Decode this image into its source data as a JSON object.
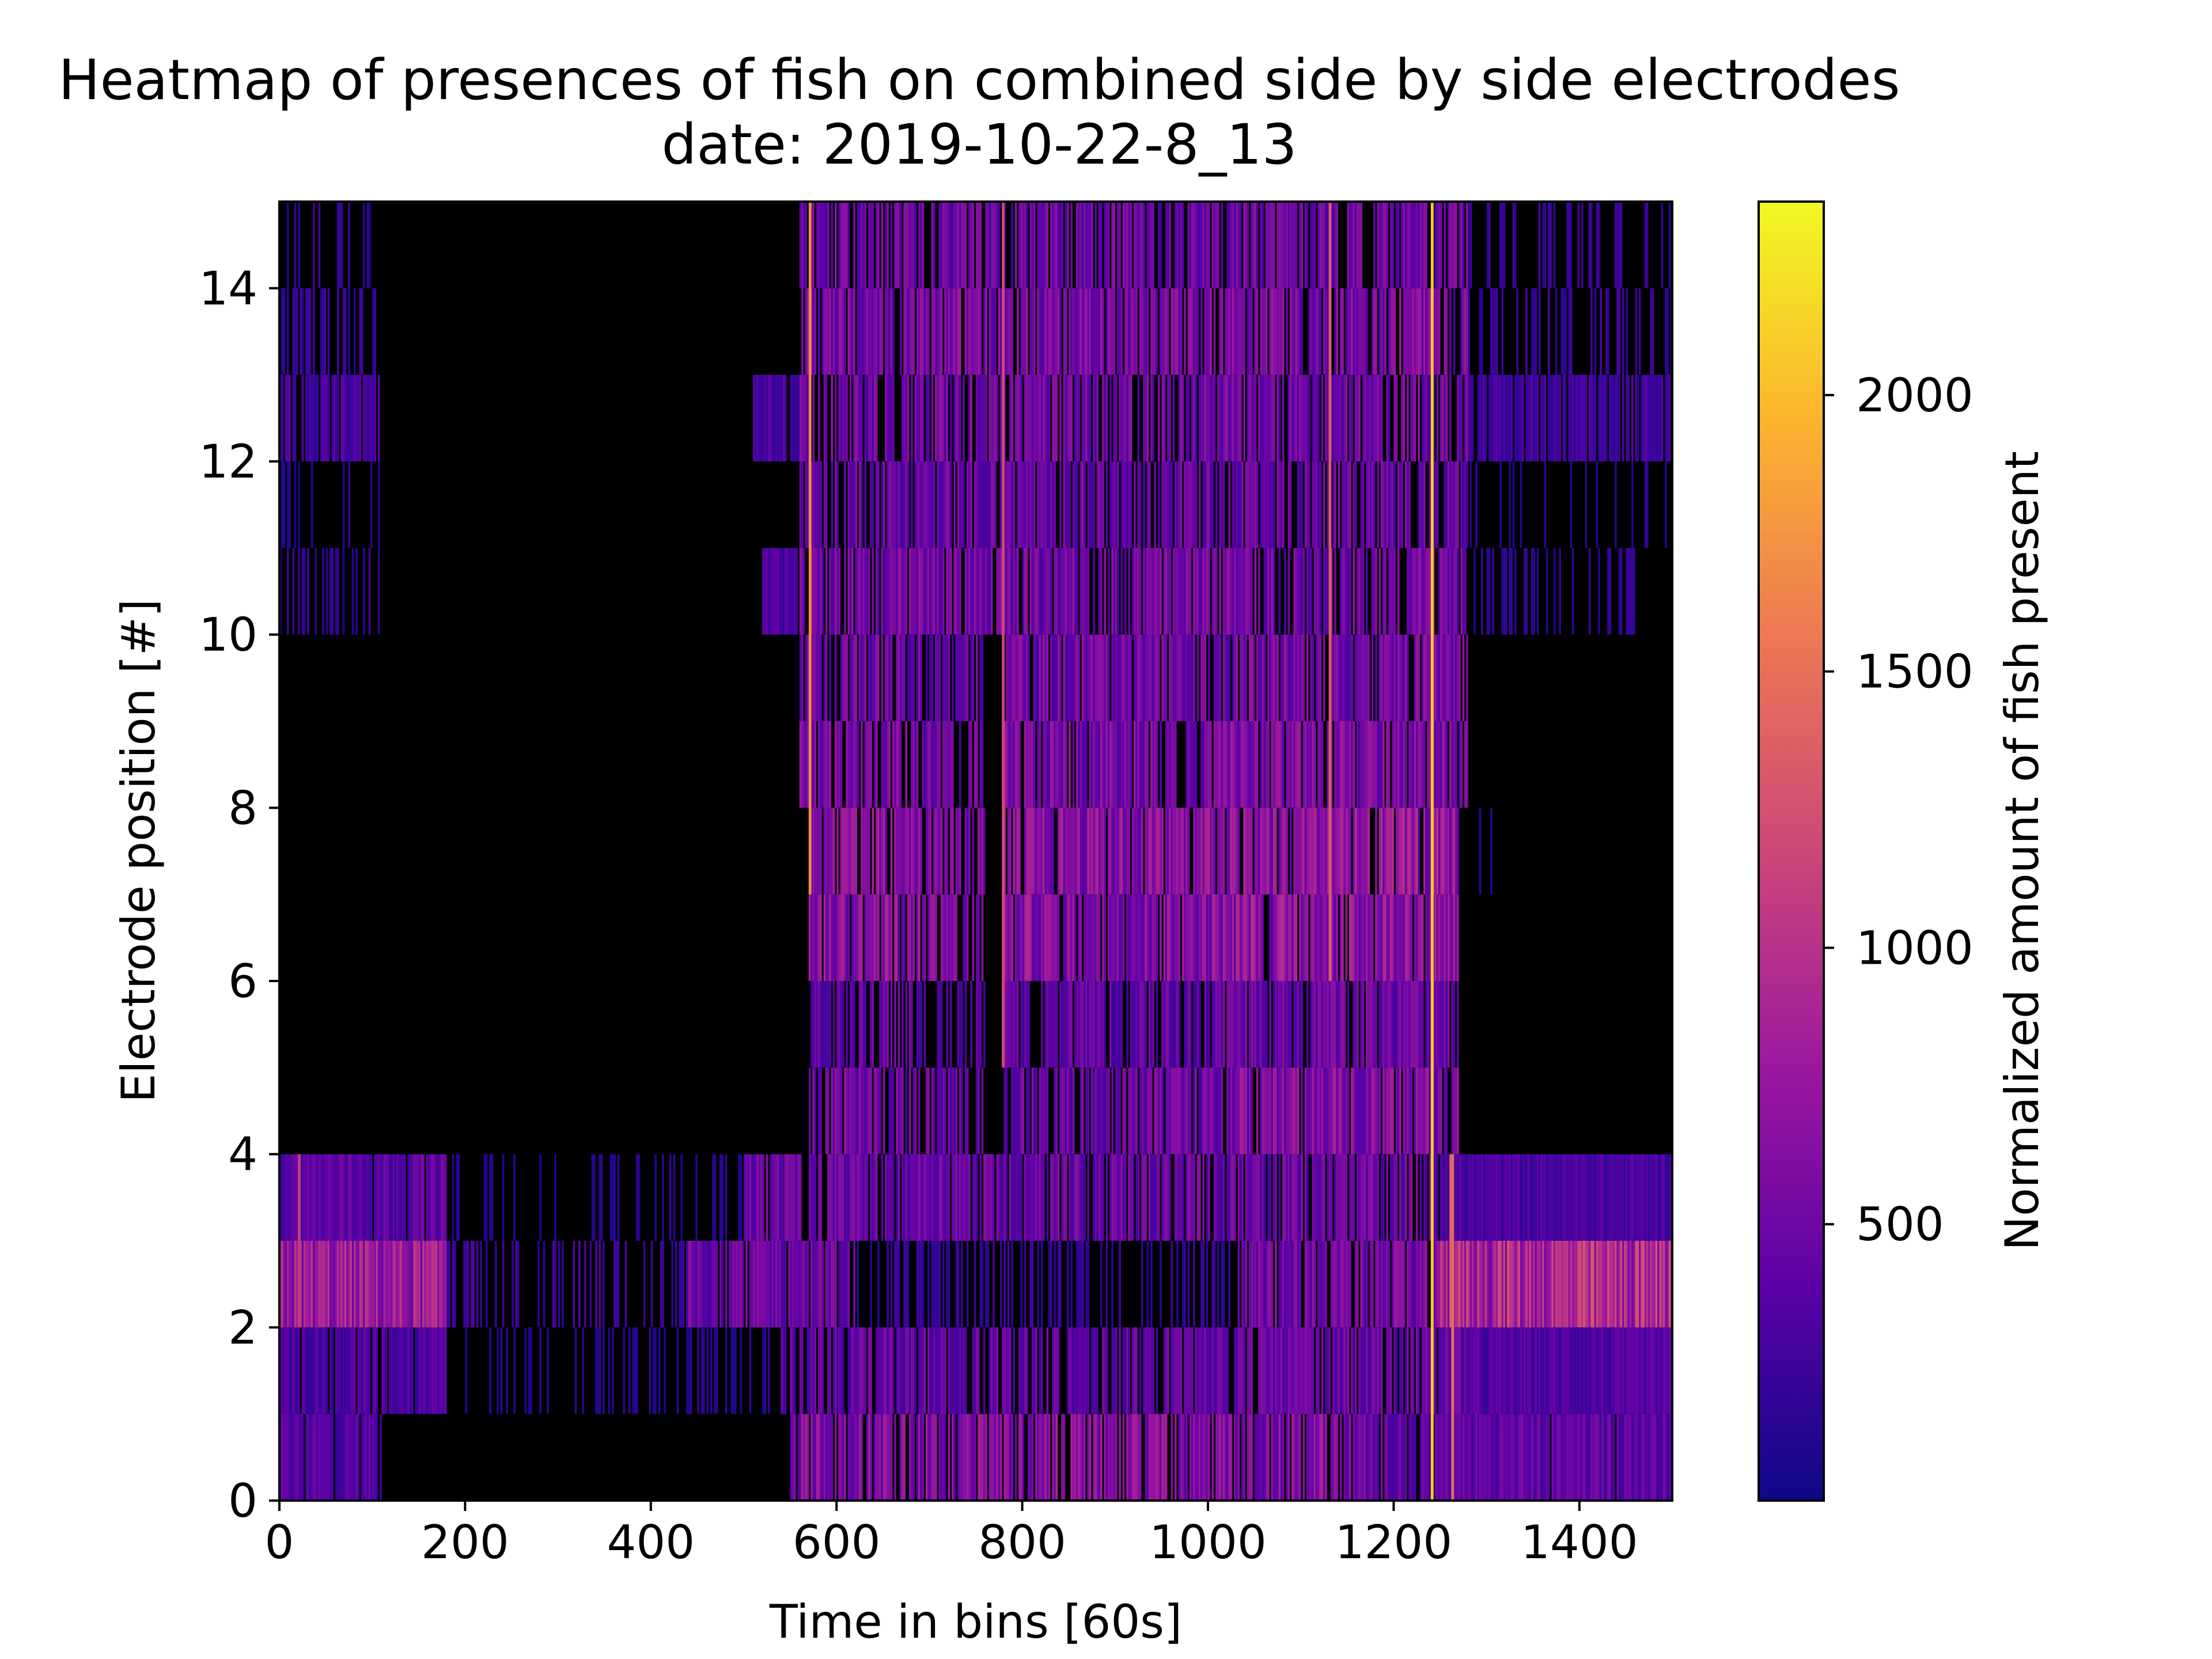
{
  "chart_data": {
    "type": "heatmap",
    "title": "Heatmap of presences of fish on combined side by side electrodes",
    "subtitle": "date: 2019-10-22-8_13",
    "xlabel": "Time in bins [60s]",
    "ylabel": "Electrode position [#]",
    "colorbar_label": "Normalized amount of fish present",
    "colormap": "plasma",
    "colormap_stops": [
      "#0d0887",
      "#5c01a6",
      "#9c179e",
      "#cc4778",
      "#ed7953",
      "#fdb42f",
      "#f0f921"
    ],
    "zero_color": "#000000",
    "xlim": [
      0,
      1500
    ],
    "ylim": [
      0,
      15
    ],
    "xticks": [
      0,
      200,
      400,
      600,
      800,
      1000,
      1200,
      1400
    ],
    "yticks": [
      0,
      2,
      4,
      6,
      8,
      10,
      12,
      14
    ],
    "colorbar_range": [
      0,
      2350
    ],
    "colorbar_ticks": [
      500,
      1000,
      1500,
      2000
    ],
    "grid": false,
    "rows": 15,
    "columns": 1500,
    "segments_note": "Approximate per-electrode activity; each entry is [start_bin, end_bin, mean value, fraction of bins active]",
    "row_segments": [
      [
        [
          0,
          110,
          350,
          0.9
        ],
        [
          110,
          550,
          0,
          0
        ],
        [
          550,
          1170,
          620,
          0.8
        ],
        [
          1170,
          1500,
          420,
          0.95
        ]
      ],
      [
        [
          0,
          180,
          320,
          0.9
        ],
        [
          180,
          540,
          120,
          0.3
        ],
        [
          540,
          1060,
          430,
          0.75
        ],
        [
          1060,
          1280,
          450,
          0.85
        ],
        [
          1280,
          1500,
          330,
          1.0
        ]
      ],
      [
        [
          0,
          180,
          760,
          0.98
        ],
        [
          180,
          440,
          240,
          0.35
        ],
        [
          440,
          620,
          480,
          0.85
        ],
        [
          620,
          1030,
          200,
          0.35
        ],
        [
          1030,
          1250,
          520,
          0.85
        ],
        [
          1250,
          1500,
          900,
          1.0
        ]
      ],
      [
        [
          0,
          180,
          400,
          0.95
        ],
        [
          180,
          500,
          120,
          0.2
        ],
        [
          500,
          1250,
          470,
          0.8
        ],
        [
          1250,
          1500,
          300,
          1.0
        ]
      ],
      [
        [
          570,
          700,
          520,
          0.75
        ],
        [
          700,
          760,
          420,
          0.6
        ],
        [
          780,
          1030,
          480,
          0.8
        ],
        [
          1030,
          1270,
          600,
          0.85
        ]
      ],
      [
        [
          570,
          700,
          430,
          0.7
        ],
        [
          700,
          760,
          360,
          0.6
        ],
        [
          780,
          1030,
          420,
          0.8
        ],
        [
          1030,
          1270,
          470,
          0.85
        ]
      ],
      [
        [
          570,
          700,
          640,
          0.8
        ],
        [
          700,
          760,
          580,
          0.7
        ],
        [
          780,
          1030,
          640,
          0.85
        ],
        [
          1030,
          1270,
          690,
          0.9
        ]
      ],
      [
        [
          570,
          700,
          650,
          0.8
        ],
        [
          700,
          760,
          560,
          0.7
        ],
        [
          780,
          1030,
          650,
          0.85
        ],
        [
          1030,
          1270,
          700,
          0.9
        ],
        [
          1280,
          1330,
          120,
          0.2
        ]
      ],
      [
        [
          560,
          700,
          520,
          0.75
        ],
        [
          700,
          760,
          480,
          0.6
        ],
        [
          780,
          1030,
          560,
          0.85
        ],
        [
          1030,
          1280,
          560,
          0.85
        ]
      ],
      [
        [
          560,
          700,
          480,
          0.75
        ],
        [
          700,
          760,
          430,
          0.6
        ],
        [
          780,
          1030,
          520,
          0.85
        ],
        [
          1030,
          1280,
          520,
          0.85
        ]
      ],
      [
        [
          0,
          110,
          180,
          0.3
        ],
        [
          520,
          560,
          300,
          0.9
        ],
        [
          560,
          1280,
          520,
          0.8
        ],
        [
          1280,
          1500,
          160,
          0.25
        ]
      ],
      [
        [
          0,
          110,
          120,
          0.2
        ],
        [
          560,
          1280,
          460,
          0.75
        ],
        [
          1280,
          1500,
          120,
          0.2
        ]
      ],
      [
        [
          0,
          110,
          300,
          0.7
        ],
        [
          510,
          560,
          300,
          0.9
        ],
        [
          560,
          1280,
          500,
          0.75
        ],
        [
          1280,
          1500,
          260,
          0.8
        ]
      ],
      [
        [
          0,
          110,
          200,
          0.4
        ],
        [
          560,
          1280,
          560,
          0.8
        ],
        [
          1280,
          1500,
          230,
          0.4
        ]
      ],
      [
        [
          0,
          110,
          180,
          0.25
        ],
        [
          560,
          1280,
          480,
          0.75
        ],
        [
          1280,
          1500,
          210,
          0.35
        ]
      ]
    ],
    "highlights": [
      {
        "bin": 1240,
        "rows": [
          0,
          14
        ],
        "value": 2100
      },
      {
        "bin": 570,
        "rows": [
          7,
          14
        ],
        "value": 1700
      },
      {
        "bin": 1262,
        "rows": [
          0,
          3
        ],
        "value": 1500
      },
      {
        "bin": 1130,
        "rows": [
          6,
          14
        ],
        "value": 1350
      },
      {
        "bin": 778,
        "rows": [
          5,
          14
        ],
        "value": 1200
      },
      {
        "bin": 20,
        "rows": [
          2,
          3
        ],
        "value": 1100
      },
      {
        "bin": 1260,
        "rows": [
          2,
          3
        ],
        "value": 1400
      }
    ]
  }
}
